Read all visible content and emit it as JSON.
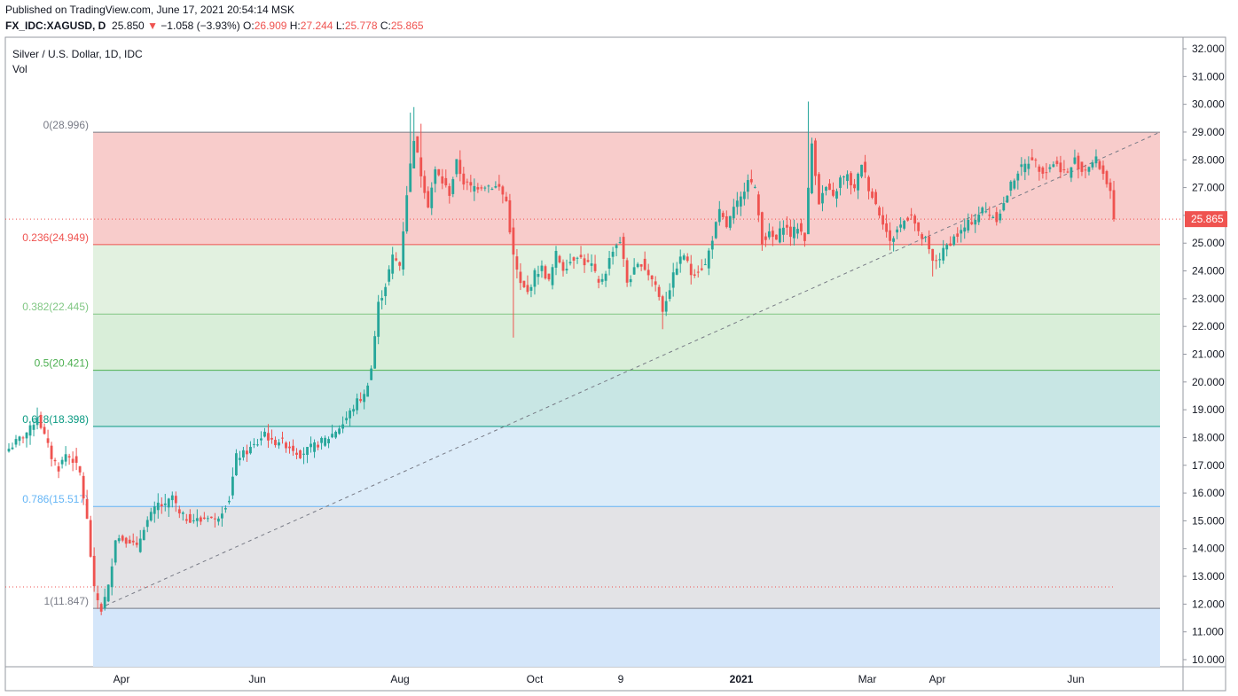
{
  "header": {
    "published": "Published on TradingView.com, June 17, 2021 20:54:14 MSK",
    "symbol": "FX_IDC:XAGUSD, D",
    "last": "25.850",
    "arrow": "▼",
    "change": "−1.058 (−3.93%)",
    "o_label": "O:",
    "o": "26.909",
    "h_label": "H:",
    "h": "27.244",
    "l_label": "L:",
    "l": "25.778",
    "c_label": "C:",
    "c": "25.865"
  },
  "legend": {
    "title": "Silver / U.S. Dollar, 1D, IDC",
    "vol": "Vol"
  },
  "colors": {
    "up": "#26a69a",
    "down": "#ef5350",
    "price_tag": "#ef5350"
  },
  "chart_data": {
    "type": "candlestick",
    "title": "Silver / U.S. Dollar, 1D, IDC",
    "y_axis": {
      "ticks": [
        "32.000",
        "31.000",
        "30.000",
        "29.000",
        "28.000",
        "27.000",
        "26.000",
        "25.000",
        "24.000",
        "23.000",
        "22.000",
        "21.000",
        "20.000",
        "19.000",
        "18.000",
        "17.000",
        "16.000",
        "15.000",
        "14.000",
        "13.000",
        "12.000",
        "11.000",
        "10.000"
      ],
      "ylim": [
        10,
        32
      ],
      "position": "right"
    },
    "x_axis": {
      "ticks": [
        {
          "label": "Apr",
          "bold": false
        },
        {
          "label": "Jun",
          "bold": false
        },
        {
          "label": "Aug",
          "bold": false
        },
        {
          "label": "Oct",
          "bold": false
        },
        {
          "label": "9",
          "bold": false
        },
        {
          "label": "2021",
          "bold": true
        },
        {
          "label": "Mar",
          "bold": false
        },
        {
          "label": "Apr",
          "bold": false
        },
        {
          "label": "Jun",
          "bold": false
        }
      ]
    },
    "current_price": {
      "label": "25.865",
      "value": 25.865
    },
    "fibonacci": {
      "levels": [
        {
          "label": "0(28.996)",
          "ratio": 0,
          "price": 28.996,
          "line": "#787b86",
          "fill": "#f8cccb",
          "text": "#787b86"
        },
        {
          "label": "0.236(24.949)",
          "ratio": 0.236,
          "price": 24.949,
          "line": "#ef5350",
          "fill": "#e2f1e0",
          "text": "#ef5350"
        },
        {
          "label": "0.382(22.445)",
          "ratio": 0.382,
          "price": 22.445,
          "line": "#81c784",
          "fill": "#d9eed9",
          "text": "#81c784"
        },
        {
          "label": "0.5(20.421)",
          "ratio": 0.5,
          "price": 20.421,
          "line": "#4caf50",
          "fill": "#c8e6e4",
          "text": "#4caf50"
        },
        {
          "label": "0.618(18.398)",
          "ratio": 0.618,
          "price": 18.398,
          "line": "#089981",
          "fill": "#dcecf9",
          "text": "#089981"
        },
        {
          "label": "0.786(15.517)",
          "ratio": 0.786,
          "price": 15.517,
          "line": "#64b5f6",
          "fill": "#e3e3e6",
          "text": "#64b5f6"
        },
        {
          "label": "1(11.847)",
          "ratio": 1,
          "price": 11.847,
          "line": "#787b86",
          "fill": "#d4e6fa",
          "text": "#787b86"
        }
      ],
      "trend_line": {
        "from": 11.847,
        "to": 28.996
      }
    },
    "ohlc_path": [
      {
        "i": 0,
        "p": 17.6
      },
      {
        "i": 6,
        "p": 18.3
      },
      {
        "i": 8,
        "p": 18.8
      },
      {
        "i": 12,
        "p": 17.3
      },
      {
        "i": 14,
        "p": 16.9
      },
      {
        "i": 16,
        "p": 17.4
      },
      {
        "i": 18,
        "p": 17.2
      },
      {
        "i": 20,
        "p": 16.7
      },
      {
        "i": 22,
        "p": 15.0
      },
      {
        "i": 24,
        "p": 12.5
      },
      {
        "i": 26,
        "p": 11.8
      },
      {
        "i": 28,
        "p": 12.6
      },
      {
        "i": 30,
        "p": 14.4
      },
      {
        "i": 34,
        "p": 14.3
      },
      {
        "i": 36,
        "p": 14.0
      },
      {
        "i": 38,
        "p": 14.8
      },
      {
        "i": 42,
        "p": 15.6
      },
      {
        "i": 44,
        "p": 15.5
      },
      {
        "i": 46,
        "p": 15.9
      },
      {
        "i": 48,
        "p": 15.2
      },
      {
        "i": 50,
        "p": 15.1
      },
      {
        "i": 54,
        "p": 15.0
      },
      {
        "i": 56,
        "p": 15.2
      },
      {
        "i": 58,
        "p": 15.0
      },
      {
        "i": 60,
        "p": 15.4
      },
      {
        "i": 62,
        "p": 15.8
      },
      {
        "i": 64,
        "p": 17.3
      },
      {
        "i": 66,
        "p": 17.4
      },
      {
        "i": 70,
        "p": 17.8
      },
      {
        "i": 72,
        "p": 18.2
      },
      {
        "i": 74,
        "p": 17.8
      },
      {
        "i": 76,
        "p": 17.9
      },
      {
        "i": 80,
        "p": 17.6
      },
      {
        "i": 82,
        "p": 17.4
      },
      {
        "i": 86,
        "p": 17.7
      },
      {
        "i": 90,
        "p": 18.0
      },
      {
        "i": 94,
        "p": 18.5
      },
      {
        "i": 98,
        "p": 19.3
      },
      {
        "i": 100,
        "p": 19.5
      },
      {
        "i": 102,
        "p": 20.5
      },
      {
        "i": 104,
        "p": 22.8
      },
      {
        "i": 106,
        "p": 23.5
      },
      {
        "i": 108,
        "p": 24.5
      },
      {
        "i": 110,
        "p": 24.2
      },
      {
        "i": 112,
        "p": 26.8
      },
      {
        "i": 114,
        "p": 28.8
      },
      {
        "i": 116,
        "p": 27.5
      },
      {
        "i": 118,
        "p": 26.4
      },
      {
        "i": 120,
        "p": 27.6
      },
      {
        "i": 122,
        "p": 27.2
      },
      {
        "i": 124,
        "p": 26.8
      },
      {
        "i": 126,
        "p": 27.9
      },
      {
        "i": 128,
        "p": 27.2
      },
      {
        "i": 130,
        "p": 27.0
      },
      {
        "i": 134,
        "p": 27.1
      },
      {
        "i": 138,
        "p": 27.0
      },
      {
        "i": 140,
        "p": 26.5
      },
      {
        "i": 142,
        "p": 24.5
      },
      {
        "i": 144,
        "p": 23.5
      },
      {
        "i": 146,
        "p": 23.2
      },
      {
        "i": 148,
        "p": 23.9
      },
      {
        "i": 150,
        "p": 24.1
      },
      {
        "i": 152,
        "p": 23.6
      },
      {
        "i": 154,
        "p": 24.6
      },
      {
        "i": 156,
        "p": 24.1
      },
      {
        "i": 160,
        "p": 24.6
      },
      {
        "i": 162,
        "p": 24.3
      },
      {
        "i": 164,
        "p": 24.2
      },
      {
        "i": 166,
        "p": 23.5
      },
      {
        "i": 168,
        "p": 24.0
      },
      {
        "i": 170,
        "p": 24.8
      },
      {
        "i": 172,
        "p": 25.1
      },
      {
        "i": 174,
        "p": 23.6
      },
      {
        "i": 176,
        "p": 24.0
      },
      {
        "i": 178,
        "p": 24.3
      },
      {
        "i": 180,
        "p": 23.9
      },
      {
        "i": 182,
        "p": 23.5
      },
      {
        "i": 184,
        "p": 22.6
      },
      {
        "i": 186,
        "p": 23.4
      },
      {
        "i": 188,
        "p": 24.2
      },
      {
        "i": 190,
        "p": 24.6
      },
      {
        "i": 192,
        "p": 23.9
      },
      {
        "i": 196,
        "p": 24.2
      },
      {
        "i": 198,
        "p": 25.2
      },
      {
        "i": 200,
        "p": 26.1
      },
      {
        "i": 202,
        "p": 25.6
      },
      {
        "i": 204,
        "p": 26.2
      },
      {
        "i": 206,
        "p": 26.6
      },
      {
        "i": 208,
        "p": 27.4
      },
      {
        "i": 210,
        "p": 26.9
      },
      {
        "i": 212,
        "p": 25.1
      },
      {
        "i": 214,
        "p": 25.3
      },
      {
        "i": 216,
        "p": 25.1
      },
      {
        "i": 218,
        "p": 25.7
      },
      {
        "i": 220,
        "p": 25.3
      },
      {
        "i": 222,
        "p": 25.6
      },
      {
        "i": 224,
        "p": 25.2
      },
      {
        "i": 226,
        "p": 28.6
      },
      {
        "i": 228,
        "p": 26.5
      },
      {
        "i": 230,
        "p": 27.0
      },
      {
        "i": 232,
        "p": 26.6
      },
      {
        "i": 234,
        "p": 27.3
      },
      {
        "i": 236,
        "p": 27.4
      },
      {
        "i": 238,
        "p": 26.9
      },
      {
        "i": 240,
        "p": 27.9
      },
      {
        "i": 242,
        "p": 27.0
      },
      {
        "i": 244,
        "p": 26.4
      },
      {
        "i": 246,
        "p": 25.8
      },
      {
        "i": 248,
        "p": 25.0
      },
      {
        "i": 250,
        "p": 25.5
      },
      {
        "i": 254,
        "p": 26.1
      },
      {
        "i": 256,
        "p": 25.3
      },
      {
        "i": 258,
        "p": 25.1
      },
      {
        "i": 260,
        "p": 24.3
      },
      {
        "i": 262,
        "p": 24.5
      },
      {
        "i": 264,
        "p": 24.9
      },
      {
        "i": 266,
        "p": 25.2
      },
      {
        "i": 268,
        "p": 25.4
      },
      {
        "i": 270,
        "p": 25.7
      },
      {
        "i": 272,
        "p": 25.9
      },
      {
        "i": 274,
        "p": 26.2
      },
      {
        "i": 278,
        "p": 25.9
      },
      {
        "i": 280,
        "p": 26.4
      },
      {
        "i": 282,
        "p": 27.1
      },
      {
        "i": 284,
        "p": 27.6
      },
      {
        "i": 286,
        "p": 27.8
      },
      {
        "i": 288,
        "p": 28.1
      },
      {
        "i": 290,
        "p": 27.7
      },
      {
        "i": 292,
        "p": 27.6
      },
      {
        "i": 294,
        "p": 27.9
      },
      {
        "i": 296,
        "p": 27.7
      },
      {
        "i": 298,
        "p": 27.5
      },
      {
        "i": 300,
        "p": 28.0
      },
      {
        "i": 302,
        "p": 27.6
      },
      {
        "i": 304,
        "p": 27.8
      },
      {
        "i": 306,
        "p": 28.0
      },
      {
        "i": 308,
        "p": 27.5
      },
      {
        "i": 310,
        "p": 26.9
      },
      {
        "i": 311,
        "p": 25.865
      }
    ],
    "spikes": [
      {
        "i": 113,
        "high": 29.7,
        "low": 27.3
      },
      {
        "i": 114,
        "high": 29.9,
        "low": 28.0
      },
      {
        "i": 116,
        "high": 29.3,
        "low": 27.0
      },
      {
        "i": 225,
        "high": 30.1,
        "low": 26.0
      },
      {
        "i": 142,
        "low": 21.6
      },
      {
        "i": 184,
        "low": 21.9
      },
      {
        "i": 26,
        "low": 11.6
      },
      {
        "i": 260,
        "low": 23.8
      }
    ]
  }
}
